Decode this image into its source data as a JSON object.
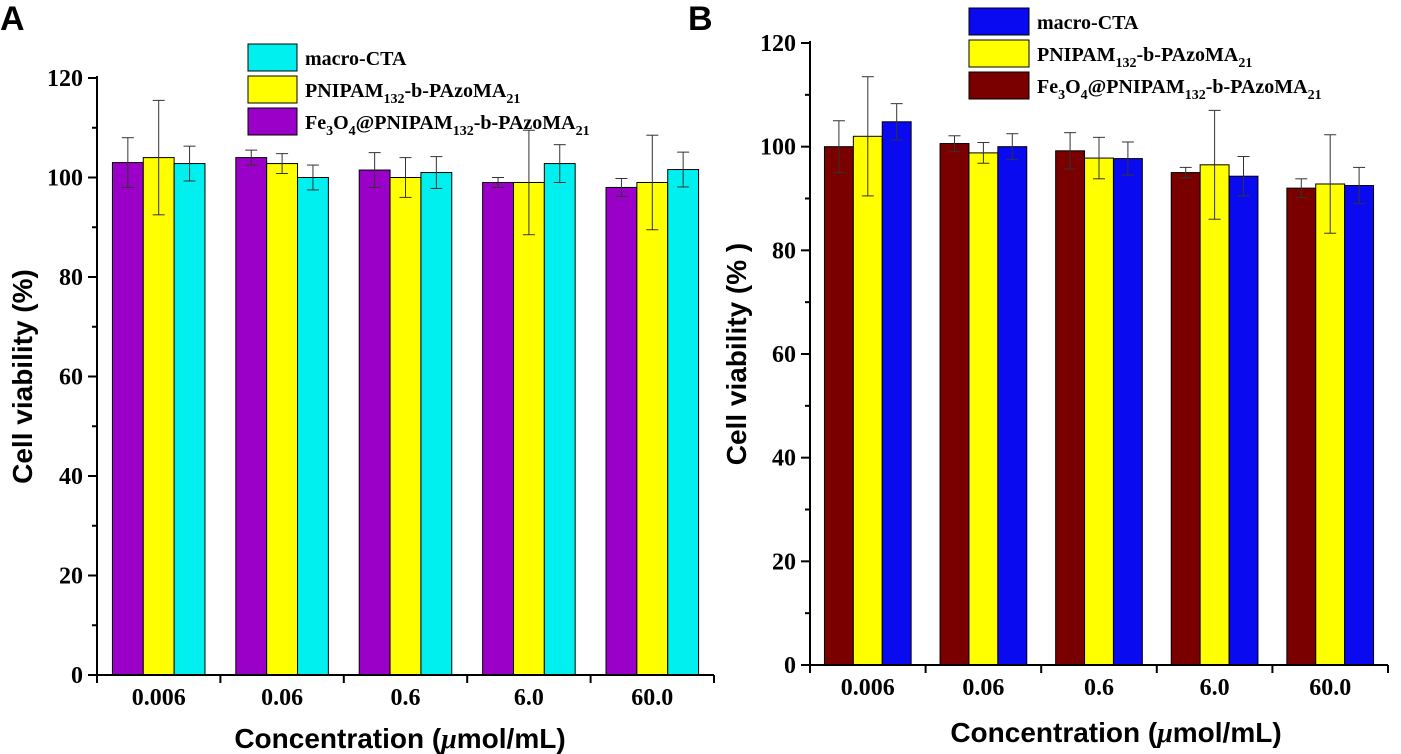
{
  "chart_data": [
    {
      "type": "bar",
      "panel_label": "A",
      "title": "",
      "xlabel": "Concentration (",
      "xlabel_mu": "μ",
      "xlabel_rest": "mol/mL)",
      "ylabel": "Cell viability (%)",
      "ylim": [
        0,
        120
      ],
      "yticks": [
        "0",
        "20",
        "40",
        "60",
        "80",
        "100",
        "120"
      ],
      "categories": [
        "0.006",
        "0.06",
        "0.6",
        "6.0",
        "60.0"
      ],
      "legend_position": "top-center",
      "series": [
        {
          "name": "Fe3O4@PNIPAM132-b-PAzoMA21",
          "color": "#9b00c9",
          "legend_parts": [
            "Fe",
            "3",
            "O",
            "4",
            "@PNIPAM",
            "132",
            "-b-PAzoMA",
            "21"
          ],
          "values": [
            103,
            104,
            101.5,
            99,
            98
          ],
          "errors": [
            5,
            1.5,
            3.5,
            1,
            1.8
          ]
        },
        {
          "name": "PNIPAM132-b-PAzoMA21",
          "color": "#ffff00",
          "legend_parts": [
            "PNIPAM",
            "132",
            "-b-PAzoMA",
            "21"
          ],
          "values": [
            104,
            102.8,
            100,
            99,
            99
          ],
          "errors": [
            11.5,
            2,
            4,
            10.5,
            9.5
          ]
        },
        {
          "name": "macro-CTA",
          "color": "#00f0f0",
          "legend_parts": [
            "macro-CTA"
          ],
          "values": [
            102.8,
            100,
            101,
            102.8,
            101.6
          ],
          "errors": [
            3.5,
            2.5,
            3.2,
            3.8,
            3.5
          ]
        }
      ],
      "legend_order": [
        2,
        1,
        0
      ]
    },
    {
      "type": "bar",
      "panel_label": "B",
      "title": "",
      "xlabel": "Concentration (",
      "xlabel_mu": "μ",
      "xlabel_rest": "mol/mL)",
      "ylabel": "Cell viability (% )",
      "ylim": [
        0,
        120
      ],
      "yticks": [
        "0",
        "20",
        "40",
        "60",
        "80",
        "100",
        "120"
      ],
      "categories": [
        "0.006",
        "0.06",
        "0.6",
        "6.0",
        "60.0"
      ],
      "legend_position": "top-center",
      "series": [
        {
          "name": "Fe3O4@PNIPAM132-b-PAzoMA21",
          "color": "#7a0000",
          "legend_parts": [
            "Fe",
            "3",
            "O",
            "4",
            "@PNIPAM",
            "132",
            "-b-PAzoMA",
            "21"
          ],
          "values": [
            100,
            100.6,
            99.2,
            95,
            92
          ],
          "errors": [
            5,
            1.5,
            3.5,
            1,
            1.8
          ]
        },
        {
          "name": "PNIPAM132-b-PAzoMA21",
          "color": "#ffff00",
          "legend_parts": [
            "PNIPAM",
            "132",
            "-b-PAzoMA",
            "21"
          ],
          "values": [
            102,
            98.8,
            97.8,
            96.5,
            92.8
          ],
          "errors": [
            11.5,
            2,
            4,
            10.5,
            9.5
          ]
        },
        {
          "name": "macro-CTA",
          "color": "#0a0af0",
          "legend_parts": [
            "macro-CTA"
          ],
          "values": [
            104.8,
            100,
            97.7,
            94.3,
            92.5
          ],
          "errors": [
            3.5,
            2.5,
            3.2,
            3.8,
            3.5
          ]
        }
      ],
      "legend_order": [
        2,
        1,
        0
      ]
    }
  ]
}
